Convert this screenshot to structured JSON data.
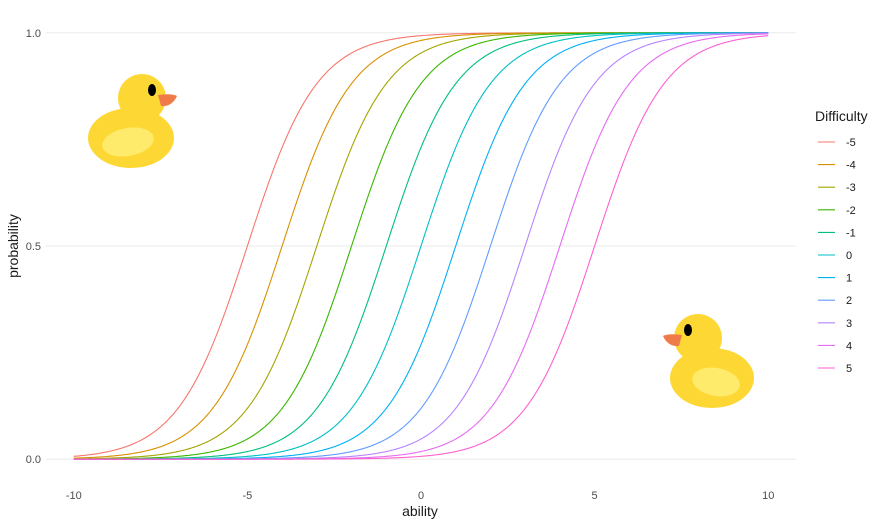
{
  "chart_data": {
    "type": "line",
    "xlabel": "ability",
    "ylabel": "probability",
    "xlim": [
      -10.8,
      10.8
    ],
    "ylim": [
      -0.03,
      1.03
    ],
    "x_ticks": [
      -10,
      -5,
      0,
      5,
      10
    ],
    "y_ticks": [
      0.0,
      0.5,
      1.0
    ],
    "x_tick_labels": [
      "-10",
      "-5",
      "0",
      "5",
      "10"
    ],
    "y_tick_labels": [
      "0.0",
      "0.5",
      "1.0"
    ],
    "grid": true,
    "legend": {
      "title": "Difficulty",
      "position": "right"
    },
    "x": [
      -10,
      -9,
      -8,
      -7,
      -6,
      -5,
      -4,
      -3,
      -2,
      -1,
      0,
      1,
      2,
      3,
      4,
      5,
      6,
      7,
      8,
      9,
      10
    ],
    "series": [
      {
        "name": "-5",
        "color": "#F8766D",
        "values": [
          0.007,
          0.018,
          0.047,
          0.119,
          0.269,
          0.5,
          0.731,
          0.881,
          0.953,
          0.982,
          0.993,
          0.998,
          0.999,
          1.0,
          1.0,
          1.0,
          1.0,
          1.0,
          1.0,
          1.0,
          1.0
        ]
      },
      {
        "name": "-4",
        "color": "#D89000",
        "values": [
          0.002,
          0.007,
          0.018,
          0.047,
          0.119,
          0.269,
          0.5,
          0.731,
          0.881,
          0.953,
          0.982,
          0.993,
          0.998,
          0.999,
          1.0,
          1.0,
          1.0,
          1.0,
          1.0,
          1.0,
          1.0
        ]
      },
      {
        "name": "-3",
        "color": "#A3A500",
        "values": [
          0.001,
          0.002,
          0.007,
          0.018,
          0.047,
          0.119,
          0.269,
          0.5,
          0.731,
          0.881,
          0.953,
          0.982,
          0.993,
          0.998,
          0.999,
          1.0,
          1.0,
          1.0,
          1.0,
          1.0,
          1.0
        ]
      },
      {
        "name": "-2",
        "color": "#39B600",
        "values": [
          0.0,
          0.001,
          0.002,
          0.007,
          0.018,
          0.047,
          0.119,
          0.269,
          0.5,
          0.731,
          0.881,
          0.953,
          0.982,
          0.993,
          0.998,
          0.999,
          1.0,
          1.0,
          1.0,
          1.0,
          1.0
        ]
      },
      {
        "name": "-1",
        "color": "#00BF7D",
        "values": [
          0.0,
          0.0,
          0.001,
          0.002,
          0.007,
          0.018,
          0.047,
          0.119,
          0.269,
          0.5,
          0.731,
          0.881,
          0.953,
          0.982,
          0.993,
          0.998,
          0.999,
          1.0,
          1.0,
          1.0,
          1.0
        ]
      },
      {
        "name": "0",
        "color": "#00BFC4",
        "values": [
          0.0,
          0.0,
          0.0,
          0.001,
          0.002,
          0.007,
          0.018,
          0.047,
          0.119,
          0.269,
          0.5,
          0.731,
          0.881,
          0.953,
          0.982,
          0.993,
          0.998,
          0.999,
          1.0,
          1.0,
          1.0
        ]
      },
      {
        "name": "1",
        "color": "#00B0F6",
        "values": [
          0.0,
          0.0,
          0.0,
          0.0,
          0.001,
          0.002,
          0.007,
          0.018,
          0.047,
          0.119,
          0.269,
          0.5,
          0.731,
          0.881,
          0.953,
          0.982,
          0.993,
          0.998,
          0.999,
          1.0,
          1.0
        ]
      },
      {
        "name": "2",
        "color": "#619CFF",
        "values": [
          0.0,
          0.0,
          0.0,
          0.0,
          0.0,
          0.001,
          0.002,
          0.007,
          0.018,
          0.047,
          0.119,
          0.269,
          0.5,
          0.731,
          0.881,
          0.953,
          0.982,
          0.993,
          0.998,
          0.999,
          1.0
        ]
      },
      {
        "name": "3",
        "color": "#B983FF",
        "values": [
          0.0,
          0.0,
          0.0,
          0.0,
          0.0,
          0.0,
          0.001,
          0.002,
          0.007,
          0.018,
          0.047,
          0.119,
          0.269,
          0.5,
          0.731,
          0.881,
          0.953,
          0.982,
          0.993,
          0.998,
          0.999
        ]
      },
      {
        "name": "4",
        "color": "#E76BF3",
        "values": [
          0.0,
          0.0,
          0.0,
          0.0,
          0.0,
          0.0,
          0.0,
          0.001,
          0.002,
          0.007,
          0.018,
          0.047,
          0.119,
          0.269,
          0.5,
          0.731,
          0.881,
          0.953,
          0.982,
          0.993,
          0.998
        ]
      },
      {
        "name": "5",
        "color": "#FD61D1",
        "values": [
          0.0,
          0.0,
          0.0,
          0.0,
          0.0,
          0.0,
          0.0,
          0.0,
          0.001,
          0.002,
          0.007,
          0.018,
          0.047,
          0.119,
          0.269,
          0.5,
          0.731,
          0.881,
          0.953,
          0.982,
          0.993
        ]
      }
    ]
  },
  "decorations": {
    "duck_icon": "rubber-duck",
    "duck_body_color": "#FDD835",
    "duck_wing_color": "#FFEB6B",
    "duck_beak_color": "#F07B4A",
    "duck_eye_color": "#000000"
  },
  "style": {
    "grid_color": "#EBEBEB",
    "tick_color": "#4D4D4D"
  }
}
